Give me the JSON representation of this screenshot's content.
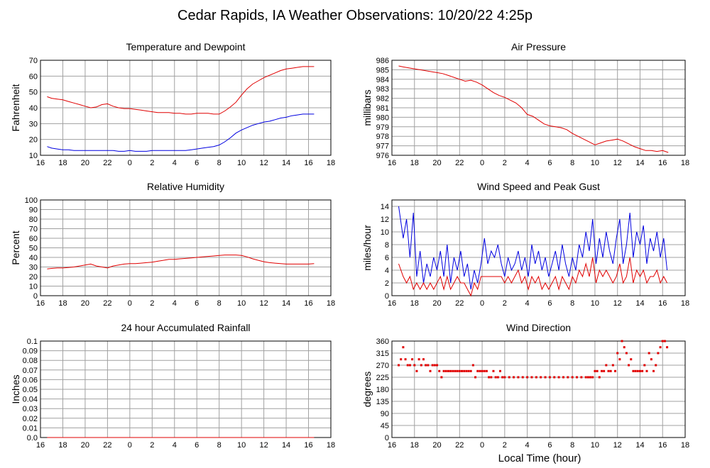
{
  "title": "Cedar Rapids, IA Weather Observations: 10/20/22 4:25p",
  "x_axis_label": "Local Time (hour)",
  "x_ticks": [
    "16",
    "18",
    "20",
    "22",
    "0",
    "2",
    "4",
    "6",
    "8",
    "10",
    "12",
    "14",
    "16",
    "18"
  ],
  "colors": {
    "red": "#e00000",
    "blue": "#0000e0",
    "grid": "#a0a0a0"
  },
  "chart_data": [
    {
      "id": "temp",
      "type": "line",
      "title": "Temperature and Dewpoint",
      "ylabel": "Fahrenheit",
      "ylim": [
        10,
        70
      ],
      "yticks": [
        "10",
        "20",
        "30",
        "40",
        "50",
        "60",
        "70"
      ],
      "xlim": [
        16,
        42
      ],
      "x": [
        16.6,
        17.0,
        17.5,
        18,
        18.5,
        19,
        19.5,
        20,
        20.5,
        21,
        21.5,
        22,
        22.5,
        23,
        23.5,
        24,
        24.5,
        25,
        25.5,
        26,
        26.5,
        27,
        27.5,
        28,
        28.5,
        29,
        29.5,
        30,
        30.5,
        31,
        31.5,
        32,
        32.5,
        33,
        33.5,
        34,
        34.5,
        35,
        35.5,
        36,
        36.5,
        37,
        37.5,
        38,
        38.5,
        39,
        39.5,
        40,
        40.5
      ],
      "series": [
        {
          "color": "#e00000",
          "values": [
            47,
            46,
            45.5,
            45,
            44,
            43,
            42,
            41,
            40,
            40.5,
            42,
            42.5,
            41,
            40,
            39.5,
            39.5,
            39,
            38.5,
            38,
            37.5,
            37,
            37,
            37,
            36.5,
            36.5,
            36,
            36,
            36.5,
            36.5,
            36.5,
            36,
            36,
            38,
            40.5,
            43.5,
            48,
            52,
            55,
            57,
            59,
            60.5,
            62,
            63.5,
            64.5,
            65,
            65.5,
            66,
            66,
            66
          ]
        },
        {
          "color": "#0000e0",
          "values": [
            15.5,
            14.5,
            14,
            13.5,
            13.5,
            13,
            13,
            13,
            13,
            13,
            13,
            13,
            13,
            12.5,
            12.5,
            13,
            12.5,
            12.5,
            12.5,
            13,
            13,
            13,
            13,
            13,
            13,
            13,
            13.5,
            14,
            14.5,
            15,
            15.5,
            16.5,
            18.5,
            21,
            24,
            26,
            27.5,
            29,
            30,
            31,
            31.5,
            32.5,
            33.5,
            34,
            35,
            35.5,
            36,
            36,
            36
          ]
        }
      ]
    },
    {
      "id": "pressure",
      "type": "line",
      "title": "Air Pressure",
      "ylabel": "millibars",
      "ylim": [
        976,
        986
      ],
      "yticks": [
        "976",
        "977",
        "978",
        "979",
        "980",
        "981",
        "982",
        "983",
        "984",
        "985",
        "986"
      ],
      "xlim": [
        16,
        42
      ],
      "x": [
        16.6,
        17,
        17.5,
        18,
        18.5,
        19,
        19.5,
        20,
        20.5,
        21,
        21.5,
        22,
        22.5,
        23,
        23.5,
        24,
        24.5,
        25,
        25.5,
        26,
        26.5,
        27,
        27.5,
        28,
        28.5,
        29,
        29.5,
        30,
        30.5,
        31,
        31.5,
        32,
        32.5,
        33,
        33.5,
        34,
        34.5,
        35,
        35.5,
        36,
        36.5,
        37,
        37.5,
        38,
        38.5,
        39,
        39.5,
        40,
        40.5
      ],
      "series": [
        {
          "color": "#e00000",
          "values": [
            985.4,
            985.3,
            985.2,
            985.1,
            985.0,
            984.9,
            984.8,
            984.7,
            984.6,
            984.4,
            984.2,
            984.0,
            983.8,
            983.9,
            983.7,
            983.4,
            983.0,
            982.6,
            982.3,
            982.1,
            981.8,
            981.5,
            981.0,
            980.3,
            980.1,
            979.7,
            979.3,
            979.1,
            979.0,
            978.9,
            978.7,
            978.3,
            978.0,
            977.7,
            977.4,
            977.1,
            977.3,
            977.5,
            977.6,
            977.7,
            977.5,
            977.2,
            976.9,
            976.7,
            976.5,
            976.5,
            976.4,
            976.5,
            976.3
          ]
        }
      ]
    },
    {
      "id": "humidity",
      "type": "line",
      "title": "Relative Humidity",
      "ylabel": "Percent",
      "ylim": [
        0,
        100
      ],
      "yticks": [
        "0",
        "10",
        "20",
        "30",
        "40",
        "50",
        "60",
        "70",
        "80",
        "90",
        "100"
      ],
      "xlim": [
        16,
        42
      ],
      "x": [
        16.6,
        17,
        17.5,
        18,
        18.5,
        19,
        19.5,
        20,
        20.5,
        21,
        21.5,
        22,
        22.5,
        23,
        23.5,
        24,
        24.5,
        25,
        25.5,
        26,
        26.5,
        27,
        27.5,
        28,
        28.5,
        29,
        29.5,
        30,
        30.5,
        31,
        31.5,
        32,
        32.5,
        33,
        33.5,
        34,
        34.5,
        35,
        35.5,
        36,
        36.5,
        37,
        37.5,
        38,
        38.5,
        39,
        39.5,
        40,
        40.5
      ],
      "series": [
        {
          "color": "#e00000",
          "values": [
            28,
            28.5,
            29,
            29,
            29.5,
            30,
            31,
            32,
            33,
            31,
            30,
            29,
            31,
            32,
            33,
            33.5,
            33.5,
            34,
            34.5,
            35,
            36,
            37,
            38,
            38,
            38.5,
            39,
            39.5,
            40,
            40.5,
            41,
            41.5,
            42,
            42.5,
            42.5,
            42.5,
            42,
            40.5,
            38.5,
            37,
            35.5,
            34.5,
            34,
            33.5,
            33,
            33,
            33,
            33,
            33,
            33.5
          ]
        }
      ]
    },
    {
      "id": "wind",
      "type": "line",
      "title": "Wind Speed and Peak Gust",
      "ylabel": "miles/hour",
      "ylim": [
        0,
        15
      ],
      "yticks": [
        "0",
        "2",
        "4",
        "6",
        "8",
        "10",
        "12",
        "14"
      ],
      "xlim": [
        16,
        42
      ],
      "x": [
        16.6,
        17,
        17.3,
        17.6,
        17.9,
        18.2,
        18.5,
        18.8,
        19.1,
        19.4,
        19.7,
        20,
        20.3,
        20.6,
        20.9,
        21.2,
        21.5,
        21.8,
        22.1,
        22.4,
        22.7,
        23,
        23.3,
        23.6,
        23.9,
        24.2,
        24.5,
        24.8,
        25.1,
        25.4,
        25.7,
        26,
        26.3,
        26.6,
        26.9,
        27.2,
        27.5,
        27.8,
        28.1,
        28.4,
        28.7,
        29,
        29.3,
        29.6,
        29.9,
        30.2,
        30.5,
        30.8,
        31.1,
        31.4,
        31.7,
        32,
        32.3,
        32.6,
        32.9,
        33.2,
        33.5,
        33.8,
        34.1,
        34.4,
        34.7,
        35,
        35.3,
        35.6,
        35.9,
        36.2,
        36.5,
        36.8,
        37.1,
        37.4,
        37.7,
        38,
        38.3,
        38.6,
        38.9,
        39.2,
        39.5,
        39.8,
        40.1,
        40.4
      ],
      "series": [
        {
          "color": "#0000e0",
          "values": [
            14,
            9,
            12,
            6,
            13,
            3,
            7,
            2,
            5,
            3,
            6,
            4,
            7,
            3,
            8,
            2,
            6,
            4,
            7,
            3,
            5,
            1,
            4,
            2,
            5,
            9,
            5,
            7,
            6,
            8,
            5,
            3,
            6,
            4,
            5,
            7,
            4,
            6,
            3,
            8,
            5,
            7,
            4,
            6,
            3,
            5,
            7,
            4,
            8,
            5,
            3,
            6,
            4,
            8,
            6,
            10,
            7,
            12,
            5,
            9,
            6,
            10,
            7,
            5,
            9,
            12,
            5,
            8,
            13,
            6,
            10,
            8,
            11,
            5,
            9,
            7,
            10,
            6,
            9,
            4
          ]
        },
        {
          "color": "#e00000",
          "values": [
            5,
            3,
            2,
            3,
            1,
            2,
            1,
            2,
            1,
            2,
            1,
            2,
            3,
            1,
            3,
            1,
            2,
            3,
            2,
            2,
            1,
            0,
            2,
            1,
            3,
            3,
            3,
            3,
            3,
            3,
            3,
            2,
            3,
            2,
            3,
            4,
            2,
            3,
            1,
            3,
            2,
            3,
            1,
            2,
            1,
            2,
            3,
            1,
            3,
            2,
            1,
            3,
            2,
            4,
            3,
            5,
            3,
            6,
            2,
            4,
            3,
            4,
            3,
            2,
            3,
            5,
            2,
            3,
            6,
            2,
            4,
            3,
            4,
            2,
            3,
            3,
            4,
            2,
            3,
            2
          ]
        }
      ]
    },
    {
      "id": "rain",
      "type": "line",
      "title": "24 hour Accumulated Rainfall",
      "ylabel": "Inches",
      "ylim": [
        0,
        0.1
      ],
      "yticks": [
        "0.0",
        "0.01",
        "0.02",
        "0.03",
        "0.04",
        "0.05",
        "0.06",
        "0.07",
        "0.08",
        "0.09",
        "0.1"
      ],
      "xlim": [
        16,
        42
      ],
      "x": [
        16.6,
        40.5
      ],
      "series": [
        {
          "color": "#e00000",
          "values": [
            0,
            0
          ]
        }
      ]
    },
    {
      "id": "direction",
      "type": "scatter",
      "title": "Wind Direction",
      "ylabel": "degrees",
      "ylim": [
        0,
        360
      ],
      "yticks": [
        "0",
        "45",
        "90",
        "135",
        "180",
        "225",
        "270",
        "315",
        "360"
      ],
      "xlim": [
        16,
        42
      ],
      "x": [
        16.6,
        16.8,
        17.0,
        17.2,
        17.4,
        17.6,
        17.8,
        18.0,
        18.2,
        18.4,
        18.6,
        18.8,
        19.0,
        19.2,
        19.4,
        19.6,
        19.8,
        20.0,
        20.2,
        20.4,
        20.6,
        20.8,
        21.0,
        21.2,
        21.4,
        21.6,
        21.8,
        22.0,
        22.2,
        22.4,
        22.6,
        22.8,
        23.0,
        23.2,
        23.4,
        23.6,
        23.8,
        24.0,
        24.2,
        24.4,
        24.6,
        24.8,
        25.0,
        25.2,
        25.4,
        25.6,
        25.8,
        26.0,
        26.4,
        26.8,
        27.2,
        27.6,
        28.0,
        28.4,
        28.8,
        29.2,
        29.6,
        30.0,
        30.4,
        30.8,
        31.2,
        31.6,
        32.0,
        32.4,
        32.8,
        33.2,
        33.4,
        33.6,
        33.8,
        34.0,
        34.2,
        34.4,
        34.6,
        34.8,
        35.0,
        35.2,
        35.4,
        35.6,
        35.8,
        36.0,
        36.2,
        36.4,
        36.6,
        36.8,
        37.0,
        37.2,
        37.4,
        37.6,
        37.8,
        38.0,
        38.2,
        38.4,
        38.6,
        38.8,
        39.0,
        39.2,
        39.4,
        39.6,
        39.8,
        40.0,
        40.2,
        40.4
      ],
      "series": [
        {
          "color": "#e00000",
          "values": [
            270,
            292,
            337,
            292,
            270,
            270,
            292,
            270,
            248,
            292,
            270,
            292,
            270,
            270,
            248,
            270,
            270,
            270,
            248,
            225,
            248,
            248,
            248,
            248,
            248,
            248,
            248,
            248,
            248,
            248,
            248,
            248,
            248,
            270,
            225,
            248,
            248,
            248,
            248,
            248,
            225,
            225,
            248,
            225,
            225,
            248,
            225,
            225,
            225,
            225,
            225,
            225,
            225,
            225,
            225,
            225,
            225,
            225,
            225,
            225,
            225,
            225,
            225,
            225,
            225,
            225,
            225,
            225,
            225,
            248,
            248,
            225,
            248,
            248,
            270,
            248,
            248,
            270,
            248,
            315,
            292,
            360,
            337,
            315,
            270,
            292,
            248,
            248,
            248,
            248,
            248,
            270,
            248,
            315,
            292,
            248,
            270,
            315,
            337,
            360,
            360,
            337
          ]
        }
      ]
    }
  ]
}
